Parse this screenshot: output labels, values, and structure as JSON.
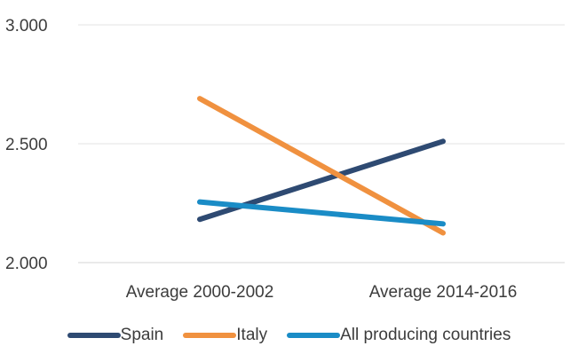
{
  "chart_data": {
    "type": "line",
    "categories": [
      "Average 2000-2002",
      "Average 2014-2016"
    ],
    "series": [
      {
        "name": "Spain",
        "values": [
          2182,
          2510
        ],
        "color": "#2e4a72"
      },
      {
        "name": "Italy",
        "values": [
          2690,
          2125
        ],
        "color": "#f0913f"
      },
      {
        "name": "All producing countries",
        "values": [
          2255,
          2163
        ],
        "color": "#1a8cc6"
      }
    ],
    "ylim": [
      2000,
      3000
    ],
    "yticks": [
      "2.000",
      "2.500",
      "3.000"
    ],
    "ytick_values": [
      2000,
      2500,
      3000
    ],
    "grid": true,
    "legend": "bottom",
    "title": "",
    "xlabel": "",
    "ylabel": ""
  }
}
